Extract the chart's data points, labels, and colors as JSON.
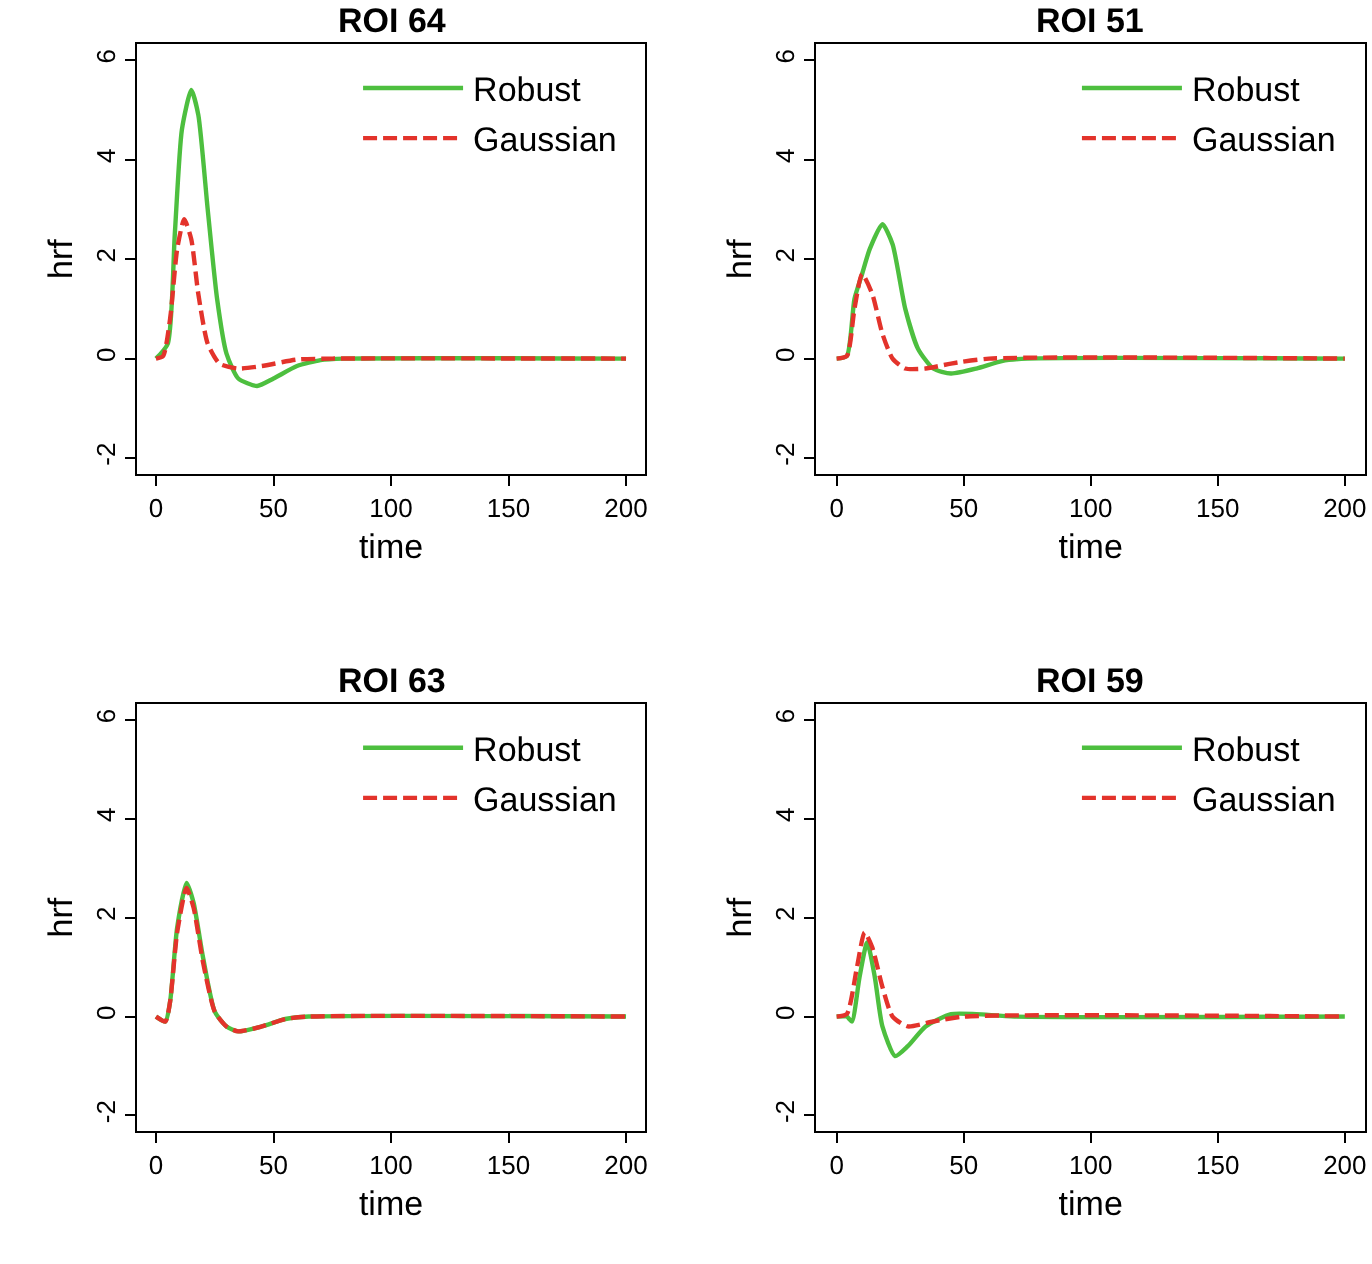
{
  "chart_data": [
    {
      "type": "line",
      "title": "ROI 64",
      "xlabel": "time",
      "ylabel": "hrf",
      "xlim": [
        -8,
        208
      ],
      "ylim": [
        -2.32,
        6.32
      ],
      "xticks": [
        0,
        50,
        100,
        150,
        200
      ],
      "yticks": [
        -2,
        0,
        2,
        4,
        6
      ],
      "legend": "top right",
      "series": [
        {
          "name": "Robust",
          "color": "#4dbf3f",
          "line_style": "solid",
          "x": [
            0,
            5,
            8,
            11,
            15,
            18,
            22,
            26,
            30,
            35,
            43,
            50,
            60,
            70,
            80,
            200
          ],
          "values": [
            0,
            0.3,
            2.5,
            4.6,
            5.4,
            4.9,
            3.0,
            1.2,
            0.1,
            -0.4,
            -0.55,
            -0.4,
            -0.15,
            -0.03,
            0,
            0
          ]
        },
        {
          "name": "Gaussian",
          "color": "#e3332b",
          "line_style": "dashed",
          "x": [
            0,
            3,
            6,
            9,
            12,
            15,
            18,
            22,
            27,
            35,
            45,
            60,
            75,
            200
          ],
          "values": [
            0,
            0.05,
            0.8,
            2.2,
            2.8,
            2.4,
            1.3,
            0.3,
            -0.1,
            -0.2,
            -0.15,
            -0.02,
            0,
            0
          ]
        }
      ]
    },
    {
      "type": "line",
      "title": "ROI 51",
      "xlabel": "time",
      "ylabel": "hrf",
      "xlim": [
        -8,
        208
      ],
      "ylim": [
        -2.32,
        6.32
      ],
      "xticks": [
        0,
        50,
        100,
        150,
        200
      ],
      "yticks": [
        -2,
        0,
        2,
        4,
        6
      ],
      "legend": "top right",
      "series": [
        {
          "name": "Robust",
          "color": "#4dbf3f",
          "line_style": "solid",
          "x": [
            0,
            4,
            7,
            10,
            13,
            18,
            22,
            27,
            32,
            38,
            45,
            55,
            65,
            75,
            200
          ],
          "values": [
            0,
            0.05,
            1.2,
            1.7,
            2.2,
            2.7,
            2.3,
            1.0,
            0.2,
            -0.2,
            -0.3,
            -0.2,
            -0.05,
            0,
            0
          ]
        },
        {
          "name": "Gaussian",
          "color": "#e3332b",
          "line_style": "dashed",
          "x": [
            0,
            4,
            7,
            10,
            14,
            18,
            22,
            27,
            35,
            45,
            60,
            200
          ],
          "values": [
            0,
            0.05,
            1.0,
            1.7,
            1.3,
            0.5,
            0.0,
            -0.2,
            -0.2,
            -0.1,
            0,
            0
          ]
        }
      ]
    },
    {
      "type": "line",
      "title": "ROI 63",
      "xlabel": "time",
      "ylabel": "hrf",
      "xlim": [
        -8,
        208
      ],
      "ylim": [
        -2.32,
        6.32
      ],
      "xticks": [
        0,
        50,
        100,
        150,
        200
      ],
      "yticks": [
        -2,
        0,
        2,
        4,
        6
      ],
      "legend": "top right",
      "series": [
        {
          "name": "Robust",
          "color": "#4dbf3f",
          "line_style": "solid",
          "x": [
            0,
            4,
            6,
            9,
            13,
            16,
            20,
            25,
            30,
            35,
            45,
            55,
            65,
            200
          ],
          "values": [
            0,
            -0.1,
            0.3,
            1.8,
            2.7,
            2.3,
            1.2,
            0.1,
            -0.2,
            -0.3,
            -0.2,
            -0.05,
            0,
            0
          ]
        },
        {
          "name": "Gaussian",
          "color": "#e3332b",
          "line_style": "dashed",
          "x": [
            0,
            4,
            6,
            9,
            13,
            16,
            20,
            25,
            30,
            35,
            45,
            55,
            65,
            200
          ],
          "values": [
            0,
            -0.1,
            0.3,
            1.7,
            2.6,
            2.2,
            1.1,
            0.1,
            -0.2,
            -0.3,
            -0.2,
            -0.05,
            0,
            0
          ]
        }
      ]
    },
    {
      "type": "line",
      "title": "ROI 59",
      "xlabel": "time",
      "ylabel": "hrf",
      "xlim": [
        -8,
        208
      ],
      "ylim": [
        -2.32,
        6.32
      ],
      "xticks": [
        0,
        50,
        100,
        150,
        200
      ],
      "yticks": [
        -2,
        0,
        2,
        4,
        6
      ],
      "legend": "top right",
      "series": [
        {
          "name": "Robust",
          "color": "#4dbf3f",
          "line_style": "solid",
          "x": [
            0,
            4,
            6,
            9,
            12,
            15,
            18,
            23,
            28,
            35,
            45,
            55,
            70,
            200
          ],
          "values": [
            0,
            0,
            -0.1,
            0.8,
            1.5,
            0.8,
            -0.2,
            -0.8,
            -0.6,
            -0.2,
            0.05,
            0.05,
            0,
            0
          ]
        },
        {
          "name": "Gaussian",
          "color": "#e3332b",
          "line_style": "dashed",
          "x": [
            0,
            4,
            8,
            11,
            14,
            18,
            22,
            28,
            38,
            50,
            200
          ],
          "values": [
            0,
            0.05,
            1.0,
            1.7,
            1.4,
            0.6,
            0.0,
            -0.2,
            -0.1,
            0,
            0
          ]
        }
      ]
    }
  ]
}
